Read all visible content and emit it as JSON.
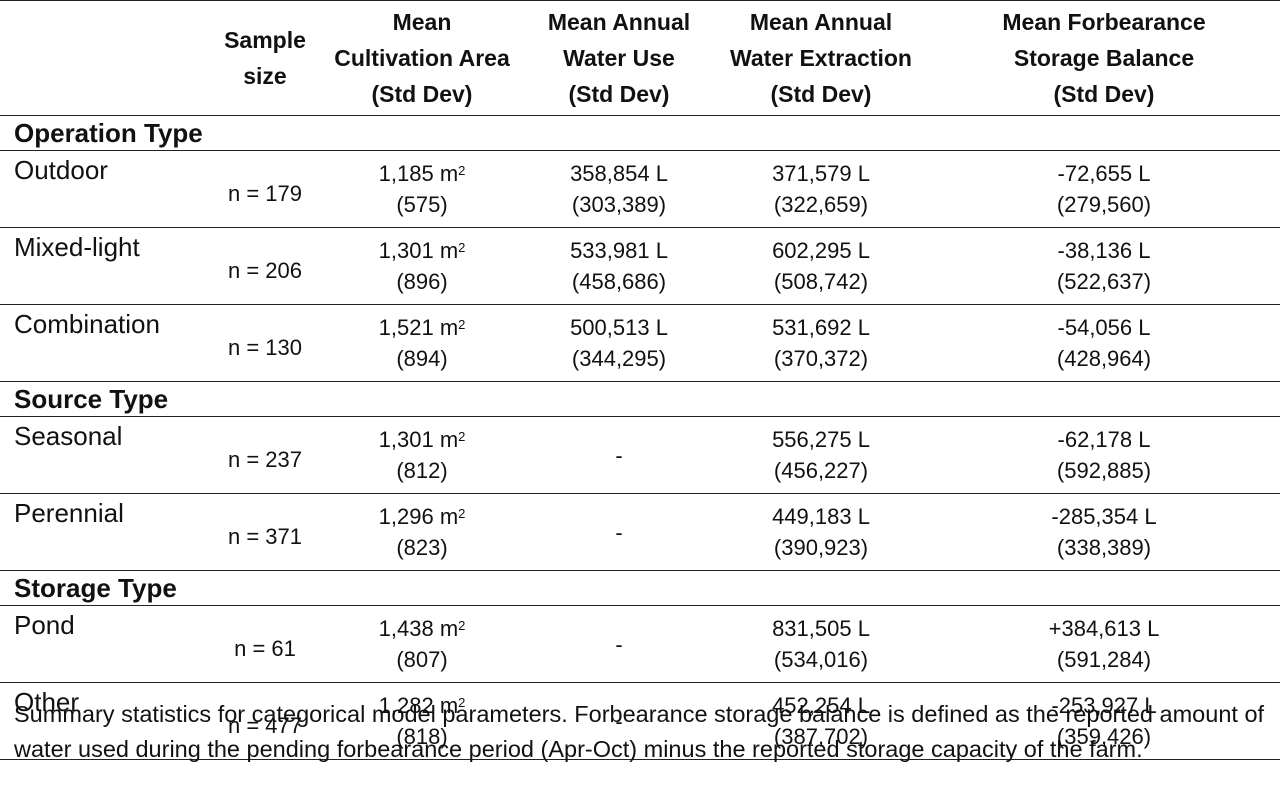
{
  "headers": {
    "sample_size": [
      "Sample",
      "size"
    ],
    "cultivation": [
      "Mean",
      "Cultivation Area",
      "(Std Dev)"
    ],
    "water_use": [
      "Mean Annual",
      "Water Use",
      "(Std Dev)"
    ],
    "extraction": [
      "Mean Annual",
      "Water Extraction",
      "(Std Dev)"
    ],
    "forbearance": [
      "Mean Forbearance",
      "Storage Balance",
      "(Std Dev)"
    ]
  },
  "area_unit": "m",
  "area_exponent": "2",
  "sections": [
    {
      "title": "Operation Type",
      "rows": [
        {
          "label": "Outdoor",
          "n": "n = 179",
          "area": "1,185",
          "area_sd": "(575)",
          "use": "358,854 L",
          "use_sd": "(303,389)",
          "ext": "371,579 L",
          "ext_sd": "(322,659)",
          "bal": "-72,655 L",
          "bal_sd": "(279,560)"
        },
        {
          "label": "Mixed-light",
          "n": "n = 206",
          "area": "1,301",
          "area_sd": "(896)",
          "use": "533,981 L",
          "use_sd": "(458,686)",
          "ext": "602,295 L",
          "ext_sd": "(508,742)",
          "bal": "-38,136 L",
          "bal_sd": "(522,637)"
        },
        {
          "label": "Combination",
          "n": "n = 130",
          "area": "1,521",
          "area_sd": "(894)",
          "use": "500,513 L",
          "use_sd": "(344,295)",
          "ext": "531,692 L",
          "ext_sd": "(370,372)",
          "bal": "-54,056 L",
          "bal_sd": "(428,964)"
        }
      ]
    },
    {
      "title": "Source Type",
      "rows": [
        {
          "label": "Seasonal",
          "n": "n = 237",
          "area": "1,301",
          "area_sd": "(812)",
          "use": "-",
          "use_sd": "",
          "ext": "556,275 L",
          "ext_sd": "(456,227)",
          "bal": "-62,178 L",
          "bal_sd": "(592,885)"
        },
        {
          "label": "Perennial",
          "n": "n = 371",
          "area": "1,296",
          "area_sd": "(823)",
          "use": "-",
          "use_sd": "",
          "ext": "449,183 L",
          "ext_sd": "(390,923)",
          "bal": "-285,354 L",
          "bal_sd": "(338,389)"
        }
      ]
    },
    {
      "title": "Storage Type",
      "rows": [
        {
          "label": "Pond",
          "n": "n = 61",
          "area": "1,438",
          "area_sd": "(807)",
          "use": "-",
          "use_sd": "",
          "ext": "831,505 L",
          "ext_sd": "(534,016)",
          "bal": "+384,613 L",
          "bal_sd": "(591,284)"
        },
        {
          "label": "Other",
          "n": "n = 477",
          "area": "1,282",
          "area_sd": "(818)",
          "use": "-",
          "use_sd": "",
          "ext": "452,254 L",
          "ext_sd": "(387,702)",
          "bal": "-253,927 L",
          "bal_sd": "(359,426)"
        }
      ]
    }
  ],
  "caption": "Summary statistics for categorical model parameters. Forbearance storage balance is defined as the reported amount of water used during the pending forbearance period (Apr-Oct) minus the reported storage capacity of the farm."
}
